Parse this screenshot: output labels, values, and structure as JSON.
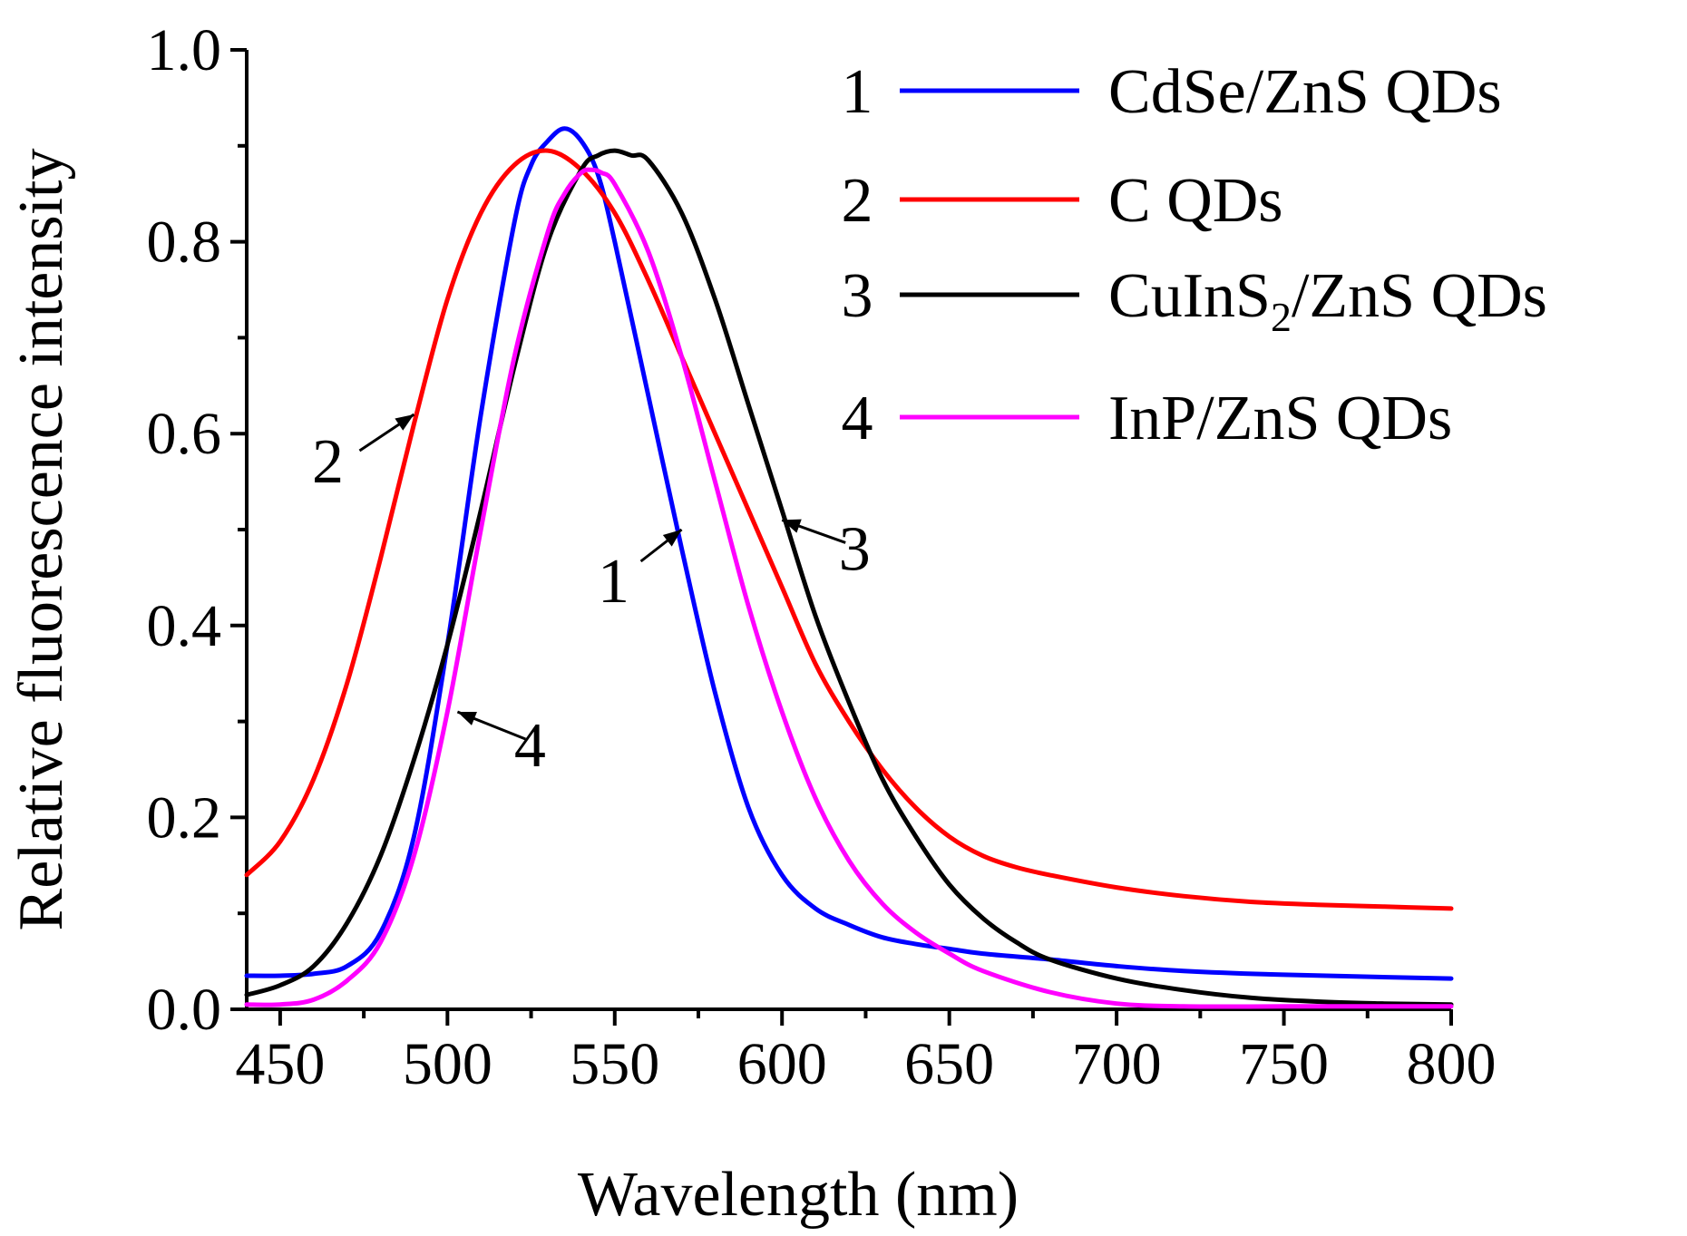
{
  "chart_data": {
    "type": "line",
    "title": "",
    "xlabel": "Wavelength (nm)",
    "ylabel": "Relative fluorescence intensity",
    "xlim": [
      440,
      800
    ],
    "ylim": [
      0.0,
      1.0
    ],
    "xticks": [
      450,
      500,
      550,
      600,
      650,
      700,
      750,
      800
    ],
    "xtick_labels": [
      "450",
      "500",
      "550",
      "600",
      "650",
      "700",
      "750",
      "800"
    ],
    "yticks": [
      0.0,
      0.2,
      0.4,
      0.6,
      0.8,
      1.0
    ],
    "ytick_labels": [
      "0.0",
      "0.2",
      "0.4",
      "0.6",
      "0.8",
      "1.0"
    ],
    "grid": false,
    "legend_position": "top-right",
    "series": [
      {
        "number": "1",
        "name": "CdSe/ZnS QDs",
        "color": "#0000ff",
        "x": [
          440,
          450,
          460,
          470,
          480,
          490,
          500,
          510,
          520,
          525,
          530,
          535,
          540,
          545,
          550,
          560,
          570,
          580,
          590,
          600,
          610,
          620,
          630,
          640,
          650,
          660,
          680,
          700,
          720,
          750,
          800
        ],
        "y": [
          0.035,
          0.035,
          0.037,
          0.045,
          0.08,
          0.18,
          0.38,
          0.62,
          0.82,
          0.88,
          0.905,
          0.918,
          0.905,
          0.87,
          0.8,
          0.64,
          0.48,
          0.33,
          0.21,
          0.14,
          0.105,
          0.088,
          0.075,
          0.068,
          0.063,
          0.058,
          0.052,
          0.045,
          0.04,
          0.036,
          0.032
        ]
      },
      {
        "number": "2",
        "name": "C QDs",
        "color": "#ff0000",
        "x": [
          440,
          450,
          460,
          470,
          480,
          490,
          500,
          510,
          520,
          530,
          540,
          550,
          560,
          570,
          580,
          590,
          600,
          610,
          620,
          630,
          640,
          650,
          660,
          670,
          680,
          700,
          720,
          740,
          760,
          780,
          800
        ],
        "y": [
          0.14,
          0.175,
          0.24,
          0.34,
          0.47,
          0.61,
          0.74,
          0.83,
          0.88,
          0.895,
          0.875,
          0.83,
          0.76,
          0.68,
          0.6,
          0.52,
          0.44,
          0.36,
          0.3,
          0.25,
          0.21,
          0.18,
          0.16,
          0.148,
          0.14,
          0.127,
          0.118,
          0.112,
          0.109,
          0.107,
          0.105
        ]
      },
      {
        "number": "3",
        "name": "CuInS₂/ZnS QDs",
        "name_main": "CuInS",
        "name_sub": "2",
        "name_rest": "/ZnS QDs",
        "color": "#000000",
        "x": [
          440,
          450,
          460,
          470,
          480,
          490,
          500,
          510,
          520,
          530,
          540,
          545,
          550,
          555,
          560,
          570,
          580,
          590,
          600,
          610,
          620,
          630,
          640,
          650,
          660,
          670,
          680,
          700,
          720,
          740,
          760,
          780,
          800
        ],
        "y": [
          0.015,
          0.025,
          0.045,
          0.09,
          0.16,
          0.26,
          0.38,
          0.52,
          0.67,
          0.8,
          0.875,
          0.89,
          0.895,
          0.89,
          0.885,
          0.83,
          0.74,
          0.63,
          0.52,
          0.41,
          0.32,
          0.24,
          0.18,
          0.13,
          0.095,
          0.07,
          0.052,
          0.032,
          0.02,
          0.012,
          0.008,
          0.006,
          0.005
        ]
      },
      {
        "number": "4",
        "name": "InP/ZnS QDs",
        "color": "#ff00ff",
        "x": [
          440,
          450,
          460,
          470,
          480,
          490,
          500,
          510,
          520,
          530,
          535,
          540,
          543,
          546,
          550,
          560,
          570,
          580,
          590,
          600,
          610,
          620,
          630,
          640,
          650,
          660,
          680,
          700,
          720,
          750,
          800
        ],
        "y": [
          0.005,
          0.005,
          0.01,
          0.03,
          0.07,
          0.16,
          0.31,
          0.5,
          0.68,
          0.81,
          0.85,
          0.872,
          0.875,
          0.872,
          0.86,
          0.79,
          0.68,
          0.55,
          0.42,
          0.31,
          0.22,
          0.155,
          0.11,
          0.08,
          0.058,
          0.04,
          0.018,
          0.006,
          0.003,
          0.003,
          0.003
        ]
      }
    ],
    "annotations": [
      {
        "label": "2",
        "series": 2,
        "x": 490,
        "y": 0.62
      },
      {
        "label": "1",
        "series": 1,
        "x": 570,
        "y": 0.5
      },
      {
        "label": "3",
        "series": 3,
        "x": 600,
        "y": 0.51
      },
      {
        "label": "4",
        "series": 4,
        "x": 503,
        "y": 0.31
      }
    ]
  }
}
